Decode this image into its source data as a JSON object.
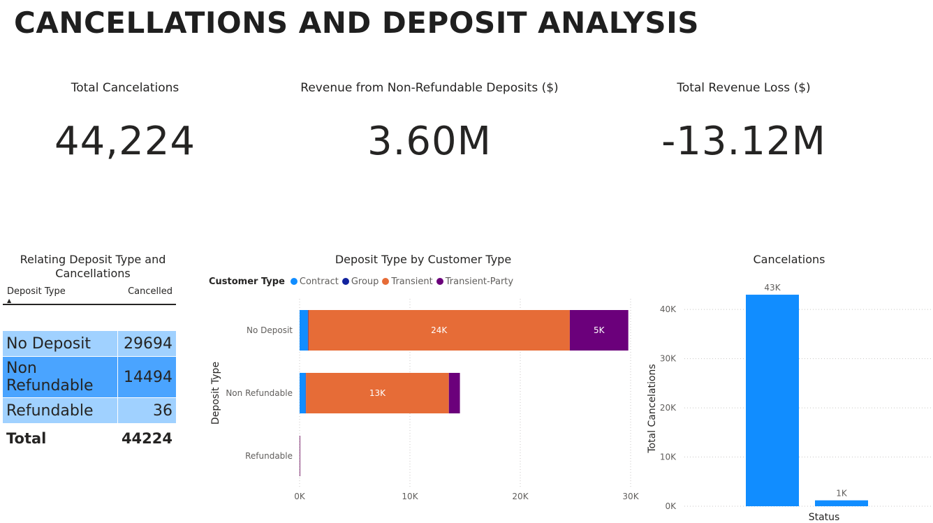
{
  "page": {
    "title": "CANCELLATIONS AND DEPOSIT ANALYSIS"
  },
  "kpis": [
    {
      "label": "Total Cancelations",
      "value": "44,224"
    },
    {
      "label": "Revenue from Non-Refundable Deposits ($)",
      "value": "3.60M"
    },
    {
      "label": "Total Revenue Loss ($)",
      "value": "-13.12M"
    }
  ],
  "table": {
    "title": "Relating Deposit Type and Cancellations",
    "headers": [
      "Deposit Type",
      "Cancelled"
    ],
    "rows": [
      {
        "type": "No Deposit",
        "cancelled": "29694",
        "color": "#a0d1ff"
      },
      {
        "type": "Non Refundable",
        "cancelled": "14494",
        "color": "#4aa4ff"
      },
      {
        "type": "Refundable",
        "cancelled": "36",
        "color": "#a0d1ff"
      }
    ],
    "total_label": "Total",
    "total_value": "44224"
  },
  "chart_data": [
    {
      "type": "bar",
      "orientation": "horizontal",
      "stacked": true,
      "title": "Deposit Type by Customer Type",
      "legend_title": "Customer Type",
      "legend_position": "top-left",
      "ylabel": "Deposit Type",
      "xlabel": "",
      "categories": [
        "No Deposit",
        "Non Refundable",
        "Refundable"
      ],
      "xlim": [
        0,
        30000
      ],
      "xticks": [
        0,
        10000,
        20000,
        30000
      ],
      "xtick_labels": [
        "0K",
        "10K",
        "20K",
        "30K"
      ],
      "grid": true,
      "series": [
        {
          "name": "Contract",
          "color": "#118dff",
          "values": [
            750,
            550,
            10
          ],
          "labels": [
            "",
            "",
            ""
          ]
        },
        {
          "name": "Group",
          "color": "#12239e",
          "values": [
            40,
            30,
            2
          ],
          "labels": [
            "",
            "",
            ""
          ]
        },
        {
          "name": "Transient",
          "color": "#e66c37",
          "values": [
            23700,
            12950,
            20
          ],
          "labels": [
            "24K",
            "13K",
            ""
          ]
        },
        {
          "name": "Transient-Party",
          "color": "#6b007b",
          "values": [
            5300,
            1000,
            4
          ],
          "labels": [
            "5K",
            "",
            ""
          ]
        }
      ]
    },
    {
      "type": "bar",
      "title": "Cancelations",
      "xlabel": "Status",
      "ylabel": "Total Cancelations",
      "categories": [
        "",
        ""
      ],
      "values": [
        43000,
        1200
      ],
      "data_labels": [
        "43K",
        "1K"
      ],
      "color": "#118dff",
      "ylim": [
        0,
        44000
      ],
      "yticks": [
        0,
        10000,
        20000,
        30000,
        40000
      ],
      "ytick_labels": [
        "0K",
        "10K",
        "20K",
        "30K",
        "40K"
      ],
      "grid": true
    }
  ]
}
